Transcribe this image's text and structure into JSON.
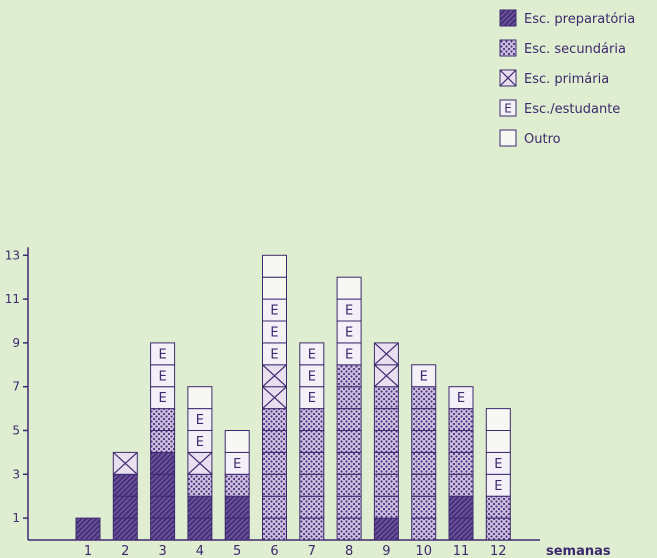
{
  "chart_data": {
    "type": "bar",
    "stacked": true,
    "categories": [
      "1",
      "2",
      "3",
      "4",
      "5",
      "6",
      "7",
      "8",
      "9",
      "10",
      "11",
      "12"
    ],
    "xlabel": "semanas",
    "ylabel": "",
    "ylim": [
      0,
      13
    ],
    "yticks": [
      1,
      3,
      5,
      7,
      9,
      11,
      13
    ],
    "grid": false,
    "legend_position": "top-right",
    "colors": {
      "background": "#dfeed0",
      "ink": "#3d2a6e",
      "hatch_fill": "#6a4f9a",
      "dots_fill": "#cfc0e0",
      "cross_fill": "#e8e0f0",
      "box_fill": "#f4f0f8"
    },
    "series": [
      {
        "name": "Esc. preparatória",
        "pattern": "hatch",
        "values": [
          1,
          3,
          4,
          2,
          2,
          0,
          0,
          0,
          1,
          0,
          2,
          0
        ]
      },
      {
        "name": "Esc. secundária",
        "pattern": "dots",
        "values": [
          0,
          0,
          2,
          1,
          1,
          6,
          6,
          8,
          6,
          7,
          4,
          2
        ]
      },
      {
        "name": "Esc. primária",
        "pattern": "cross",
        "values": [
          0,
          1,
          0,
          1,
          0,
          2,
          0,
          0,
          2,
          0,
          0,
          0
        ]
      },
      {
        "name": "Esc./estudante",
        "pattern": "E",
        "values": [
          0,
          0,
          3,
          2,
          1,
          3,
          3,
          3,
          0,
          1,
          1,
          2
        ]
      },
      {
        "name": "Outro",
        "pattern": "empty",
        "values": [
          0,
          0,
          0,
          1,
          1,
          2,
          0,
          1,
          0,
          0,
          0,
          2
        ]
      }
    ]
  }
}
